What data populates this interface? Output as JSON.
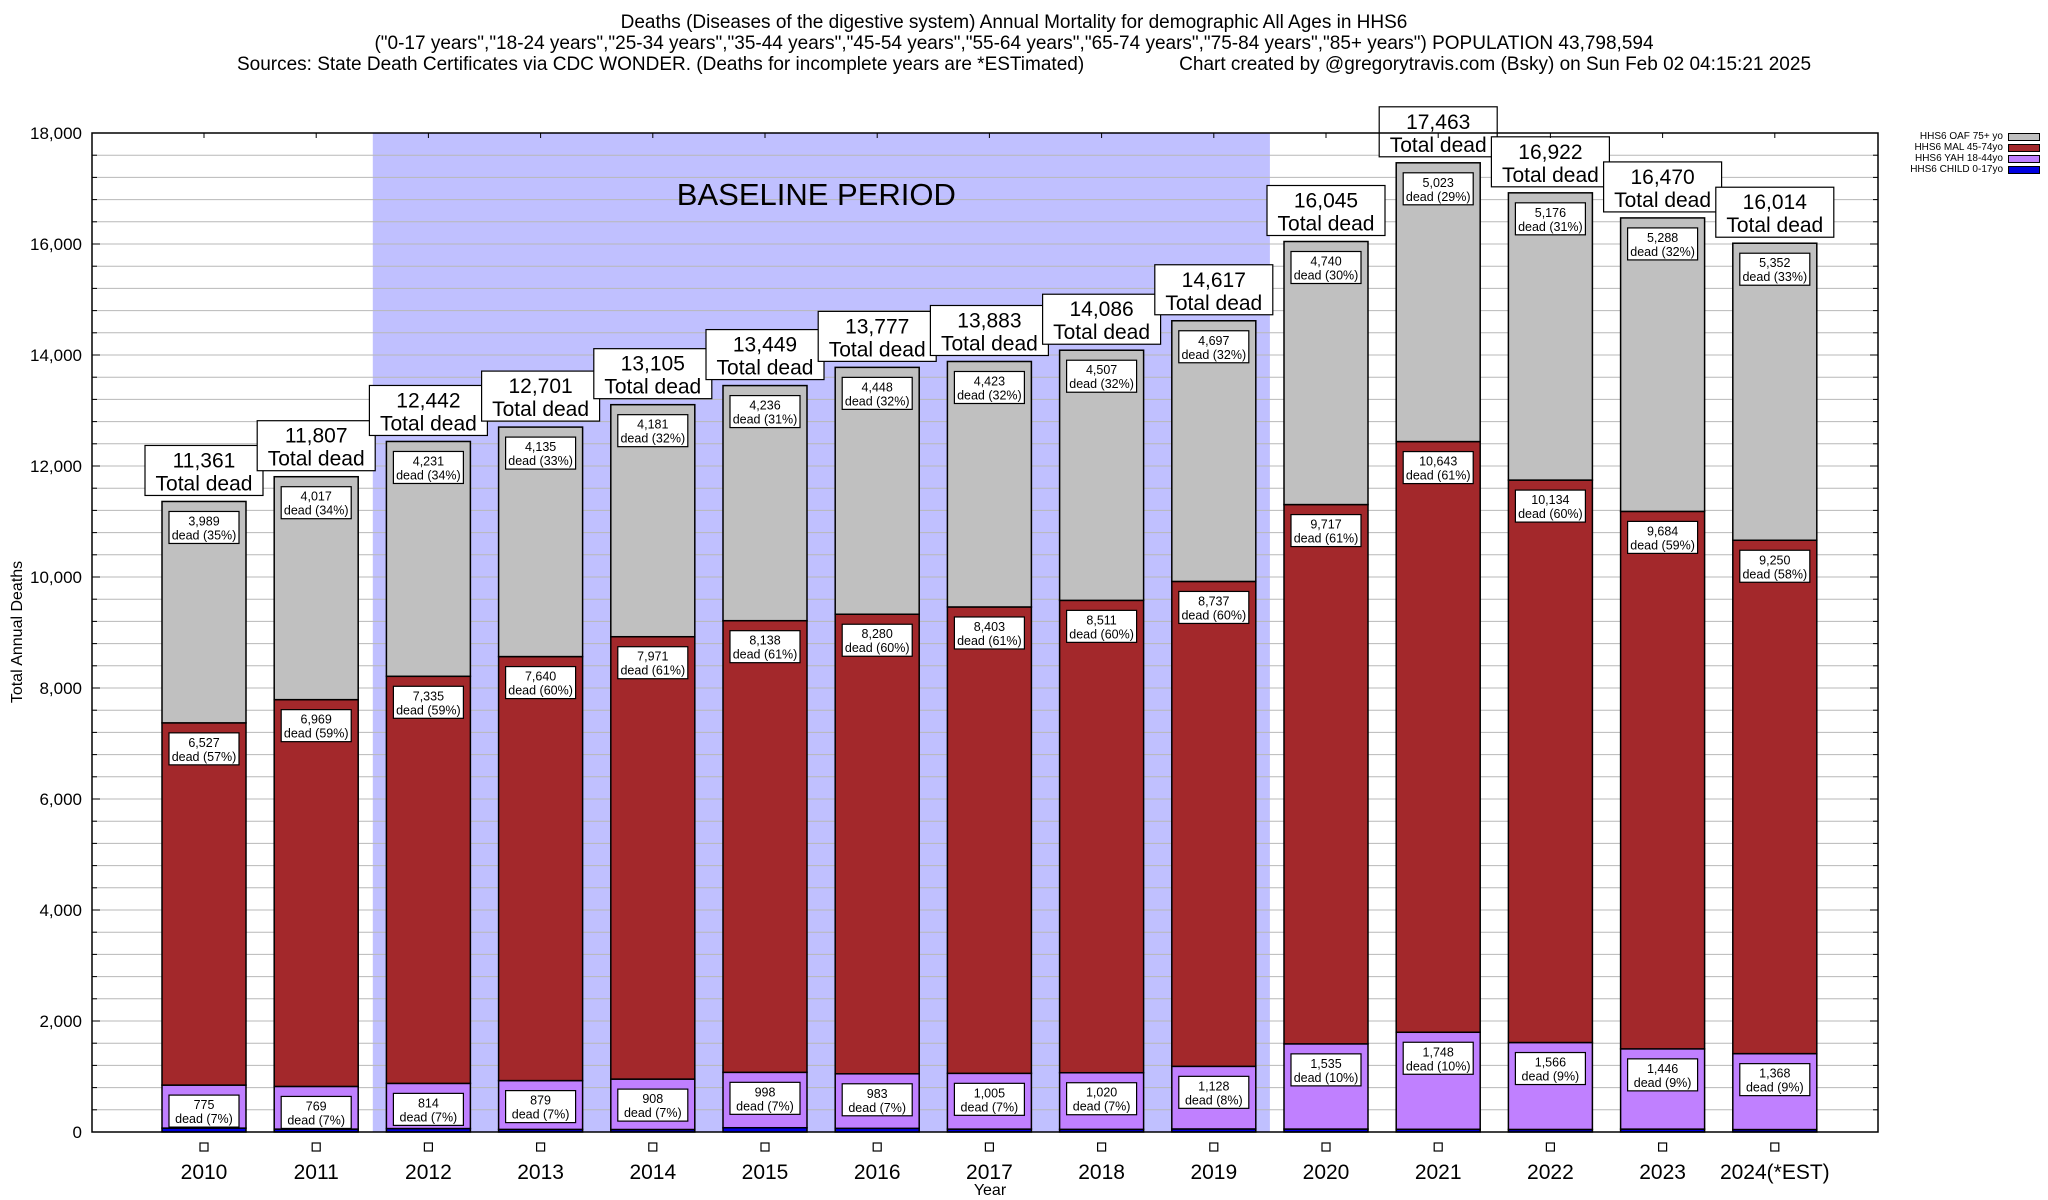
{
  "title": {
    "line1": "Deaths (Diseases of the digestive system) Annual Mortality for demographic All Ages in HHS6",
    "line2": "(\"0-17 years\",\"18-24 years\",\"25-34 years\",\"35-44 years\",\"45-54 years\",\"55-64 years\",\"65-74 years\",\"75-84 years\",\"85+ years\") POPULATION 43,798,594",
    "sources": "Sources: State Death Certificates via CDC WONDER. (Deaths for incomplete years are *ESTimated)",
    "credit": "Chart created by @gregorytravis.com (Bsky) on Sun Feb 02 04:15:21 2025"
  },
  "legend": [
    {
      "label": "HHS6 OAF 75+ yo",
      "color": "#c0c0c0"
    },
    {
      "label": "HHS6 MAL 45-74yo",
      "color": "#a3282b"
    },
    {
      "label": "HHS6 YAH 18-44yo",
      "color": "#c080ff"
    },
    {
      "label": "HHS6 CHILD 0-17yo",
      "color": "#0000e0"
    }
  ],
  "chart_data": {
    "type": "bar",
    "stacked": true,
    "title": "Deaths (Diseases of the digestive system) Annual Mortality for demographic All Ages in HHS6",
    "xlabel": "Year",
    "ylabel": "Total Annual Deaths",
    "ylim": [
      0,
      18000
    ],
    "yticks": [
      0,
      2000,
      4000,
      6000,
      8000,
      10000,
      12000,
      14000,
      16000,
      18000
    ],
    "ytick_labels": [
      "0",
      "2,000",
      "4,000",
      "6,000",
      "8,000",
      "10,000",
      "12,000",
      "14,000",
      "16,000",
      "18,000"
    ],
    "minor_grid_step": 400,
    "grid": true,
    "legend_position": "top-right",
    "categories": [
      "2010",
      "2011",
      "2012",
      "2013",
      "2014",
      "2015",
      "2016",
      "2017",
      "2018",
      "2019",
      "2020",
      "2021",
      "2022",
      "2023",
      "2024(*EST)"
    ],
    "annotation": {
      "label": "BASELINE PERIOD",
      "from": "2012",
      "to": "2019",
      "color": "#c0c0ff"
    },
    "total_suffix": "Total dead",
    "segment_suffix": "dead",
    "totals": [
      11361,
      11807,
      12442,
      12701,
      13105,
      13449,
      13777,
      13883,
      14086,
      14617,
      16045,
      17463,
      16922,
      16470,
      16014
    ],
    "totals_labels": [
      "11,361",
      "11,807",
      "12,442",
      "12,701",
      "13,105",
      "13,449",
      "13,777",
      "13,883",
      "14,086",
      "14,617",
      "16,045",
      "17,463",
      "16,922",
      "16,470",
      "16,014"
    ],
    "series": [
      {
        "name": "HHS6 CHILD 0-17yo",
        "color": "#0000e0",
        "values": [
          70,
          52,
          62,
          47,
          45,
          77,
          66,
          52,
          48,
          55,
          53,
          49,
          46,
          52,
          44
        ],
        "labels": null,
        "pct": null
      },
      {
        "name": "HHS6 YAH 18-44yo",
        "color": "#c080ff",
        "values": [
          775,
          769,
          814,
          879,
          908,
          998,
          983,
          1005,
          1020,
          1128,
          1535,
          1748,
          1566,
          1446,
          1368
        ],
        "labels": [
          "775",
          "769",
          "814",
          "879",
          "908",
          "998",
          "983",
          "1,005",
          "1,020",
          "1,128",
          "1,535",
          "1,748",
          "1,566",
          "1,446",
          "1,368"
        ],
        "pct": [
          "7%",
          "7%",
          "7%",
          "7%",
          "7%",
          "7%",
          "7%",
          "7%",
          "7%",
          "8%",
          "10%",
          "10%",
          "9%",
          "9%",
          "9%"
        ]
      },
      {
        "name": "HHS6 MAL 45-74yo",
        "color": "#a3282b",
        "values": [
          6527,
          6969,
          7335,
          7640,
          7971,
          8138,
          8280,
          8403,
          8511,
          8737,
          9717,
          10643,
          10134,
          9684,
          9250
        ],
        "labels": [
          "6,527",
          "6,969",
          "7,335",
          "7,640",
          "7,971",
          "8,138",
          "8,280",
          "8,403",
          "8,511",
          "8,737",
          "9,717",
          "10,643",
          "10,134",
          "9,684",
          "9,250"
        ],
        "pct": [
          "57%",
          "59%",
          "59%",
          "60%",
          "61%",
          "61%",
          "60%",
          "61%",
          "60%",
          "60%",
          "61%",
          "61%",
          "60%",
          "59%",
          "58%"
        ]
      },
      {
        "name": "HHS6 OAF 75+ yo",
        "color": "#c0c0c0",
        "values": [
          3989,
          4017,
          4231,
          4135,
          4181,
          4236,
          4448,
          4423,
          4507,
          4697,
          4740,
          5023,
          5176,
          5288,
          5352
        ],
        "labels": [
          "3,989",
          "4,017",
          "4,231",
          "4,135",
          "4,181",
          "4,236",
          "4,448",
          "4,423",
          "4,507",
          "4,697",
          "4,740",
          "5,023",
          "5,176",
          "5,288",
          "5,352"
        ],
        "pct": [
          "35%",
          "34%",
          "34%",
          "33%",
          "32%",
          "31%",
          "32%",
          "32%",
          "32%",
          "32%",
          "30%",
          "29%",
          "31%",
          "32%",
          "33%"
        ]
      }
    ]
  }
}
